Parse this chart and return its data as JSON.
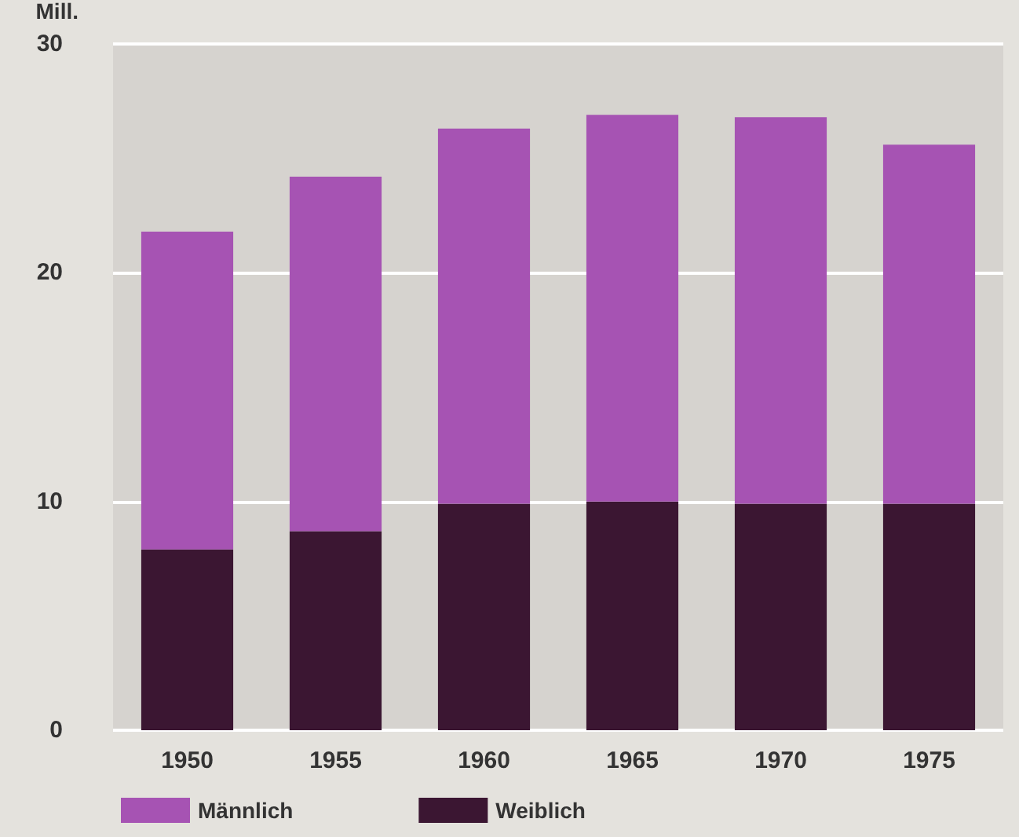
{
  "chart_data": {
    "type": "bar",
    "ylabel": "Mill.",
    "categories": [
      "1950",
      "1955",
      "1960",
      "1965",
      "1970",
      "1975"
    ],
    "series": [
      {
        "name": "Weiblich",
        "color": "#3b1632",
        "values": [
          7.9,
          8.7,
          9.9,
          10.0,
          9.9,
          9.9
        ]
      },
      {
        "name": "Männlich",
        "color": "#a653b3",
        "values": [
          13.9,
          15.5,
          16.4,
          16.9,
          16.9,
          15.7
        ]
      }
    ],
    "stacked": true,
    "ylim": [
      0,
      30
    ],
    "yticks": [
      0,
      10,
      20,
      30
    ],
    "grid": "y",
    "legend": "bottom left"
  }
}
